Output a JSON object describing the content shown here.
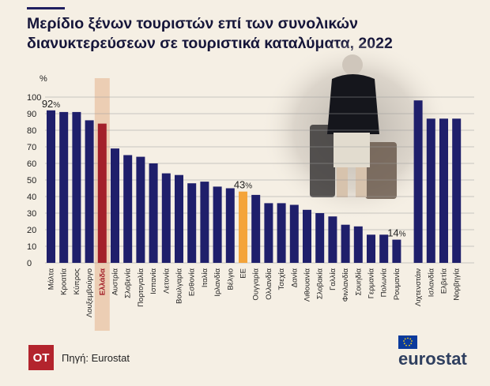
{
  "title": "Μερίδιο ξένων τουριστών επί των συνολικών διανυκτερεύσεων σε τουριστικά καταλύματα, 2022",
  "source": "Πηγή: Eurostat",
  "publisher_logo": "ΟΤ",
  "brand": "eurostat",
  "colors": {
    "bar": "#1f1f6b",
    "highlight_greece": "#a3202a",
    "highlight_eu": "#f4a43a",
    "greece_band": "#e8c3a4",
    "grid": "#9a9a9a",
    "background": "#f5efe4"
  },
  "chart_data": {
    "type": "bar",
    "ylabel": "%",
    "ylim": [
      0,
      100
    ],
    "yticks": [
      0,
      10,
      20,
      30,
      40,
      50,
      60,
      70,
      80,
      90,
      100
    ],
    "grid": true,
    "categories": [
      "Μάλτα",
      "Κροατία",
      "Κύπρος",
      "Λουξεμβούργο",
      "Ελλάδα",
      "Αυστρία",
      "Σλοβενία",
      "Πορτογαλία",
      "Ισπανία",
      "Λετονία",
      "Βουλγαρία",
      "Εσθονία",
      "Ιταλία",
      "Ιρλανδία",
      "Βέλγιο",
      "ΕΕ",
      "Ουγγαρία",
      "Ολλανδία",
      "Τσεχία",
      "Δανία",
      "Λιθουανία",
      "Σλοβακία",
      "Γαλλία",
      "Φινλανδία",
      "Σουηδία",
      "Γερμανία",
      "Πολωνία",
      "Ρουμανία",
      "Λιχτενστάιν",
      "Ισλανδία",
      "Ελβετία",
      "Νορβηγία"
    ],
    "values": [
      92,
      91,
      91,
      86,
      84,
      69,
      65,
      64,
      60,
      54,
      53,
      48,
      49,
      46,
      45,
      43,
      41,
      36,
      36,
      35,
      32,
      30,
      28,
      23,
      22,
      17,
      17,
      14,
      98,
      87,
      87,
      87
    ],
    "group_break_after": "Ρουμανία",
    "highlights": {
      "Ελλάδα": "highlight_greece",
      "ΕΕ": "highlight_eu"
    },
    "data_labels": [
      {
        "category": "Μάλτα",
        "number": "92",
        "unit": "%"
      },
      {
        "category": "ΕΕ",
        "number": "43",
        "unit": "%"
      },
      {
        "category": "Ρουμανία",
        "number": "14",
        "unit": "%"
      }
    ]
  }
}
